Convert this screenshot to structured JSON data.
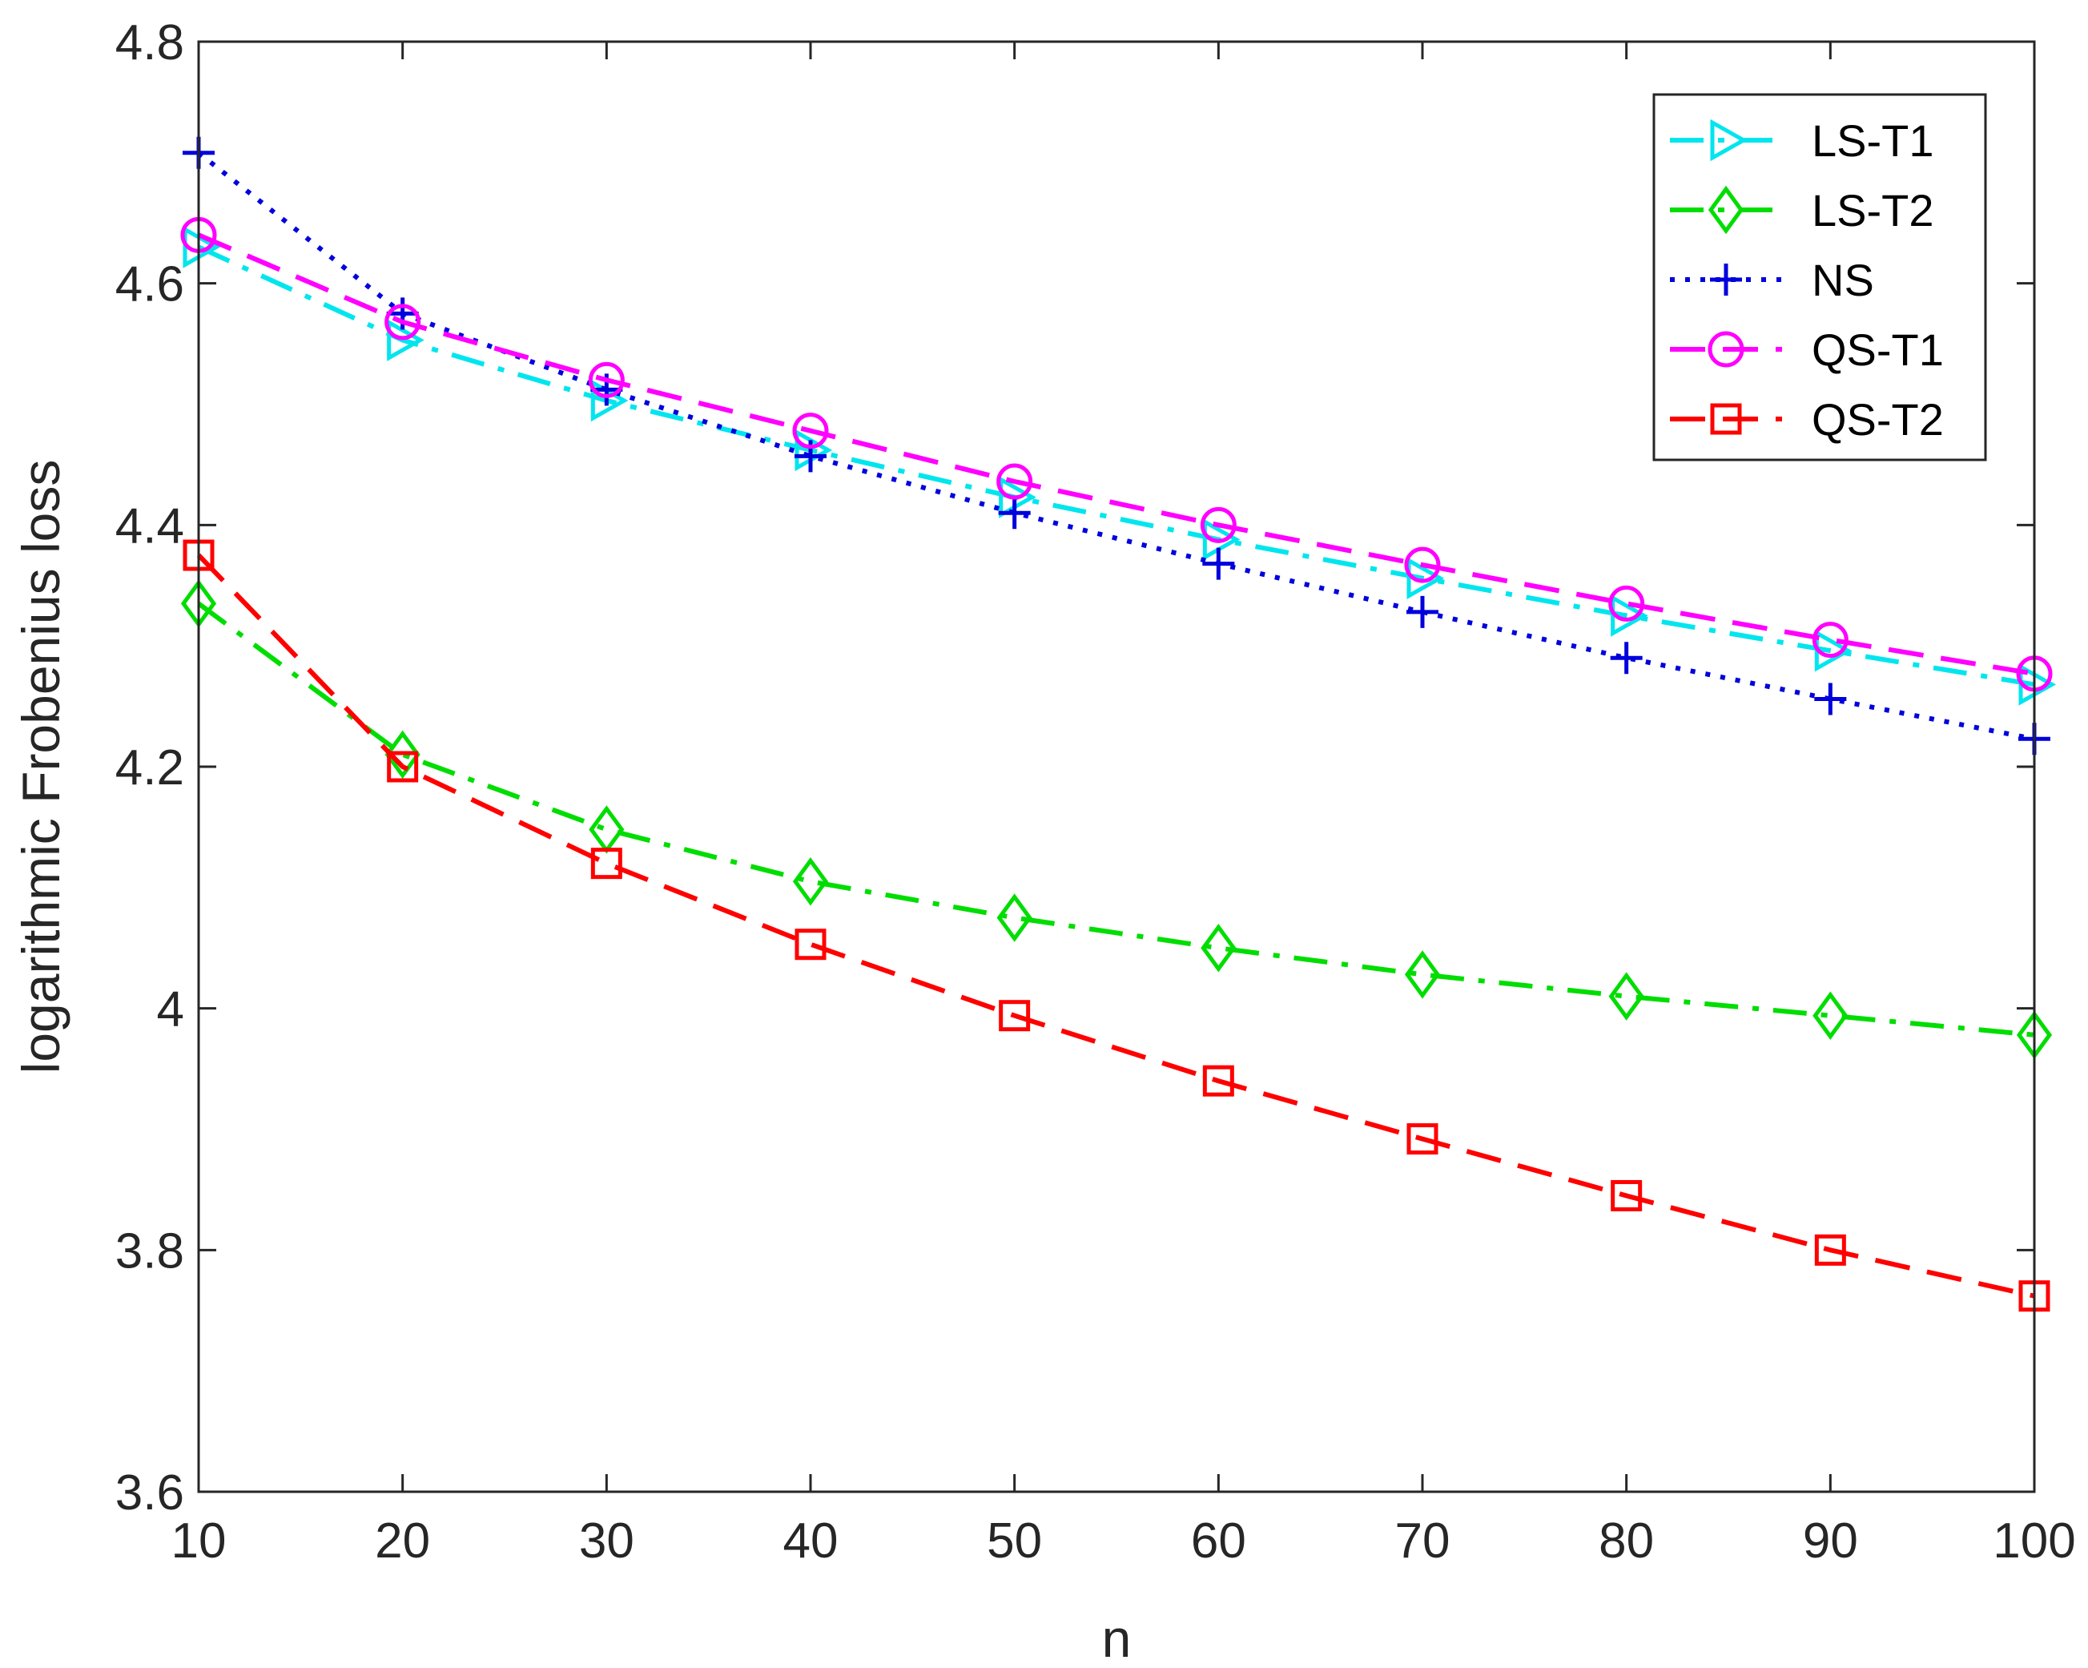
{
  "chart_data": {
    "type": "line",
    "title": "",
    "xlabel": "n",
    "ylabel": "logarithmic Frobenius loss",
    "x": [
      10,
      20,
      30,
      40,
      50,
      60,
      70,
      80,
      90,
      100
    ],
    "xlim": [
      10,
      100
    ],
    "ylim": [
      3.6,
      4.8
    ],
    "xticks": [
      "10",
      "20",
      "30",
      "40",
      "50",
      "60",
      "70",
      "80",
      "90",
      "100"
    ],
    "yticks": [
      "3.6",
      "3.8",
      "4",
      "4.2",
      "4.4",
      "4.6",
      "4.8"
    ],
    "grid": false,
    "legend_position": "top-right",
    "series": [
      {
        "name": "LS-T1",
        "color": "#00e5ee",
        "dash": "dash-dot",
        "marker": "triangle-right",
        "values": [
          4.63,
          4.553,
          4.503,
          4.462,
          4.423,
          4.388,
          4.356,
          4.325,
          4.296,
          4.268
        ]
      },
      {
        "name": "LS-T2",
        "color": "#00dd00",
        "dash": "dash-dot",
        "marker": "diamond",
        "values": [
          4.335,
          4.21,
          4.148,
          4.105,
          4.075,
          4.05,
          4.028,
          4.01,
          3.994,
          3.978
        ]
      },
      {
        "name": "NS",
        "color": "#0000dd",
        "dash": "dotted",
        "marker": "plus",
        "values": [
          4.708,
          4.575,
          4.512,
          4.457,
          4.41,
          4.368,
          4.328,
          4.29,
          4.256,
          4.223
        ]
      },
      {
        "name": "QS-T1",
        "color": "#ff00ff",
        "dash": "dashed",
        "marker": "circle",
        "values": [
          4.64,
          4.568,
          4.52,
          4.478,
          4.436,
          4.4,
          4.367,
          4.335,
          4.305,
          4.277
        ]
      },
      {
        "name": "QS-T2",
        "color": "#ff0000",
        "dash": "dashed",
        "marker": "square",
        "values": [
          4.375,
          4.2,
          4.12,
          4.053,
          3.994,
          3.94,
          3.892,
          3.845,
          3.8,
          3.762
        ]
      }
    ]
  }
}
